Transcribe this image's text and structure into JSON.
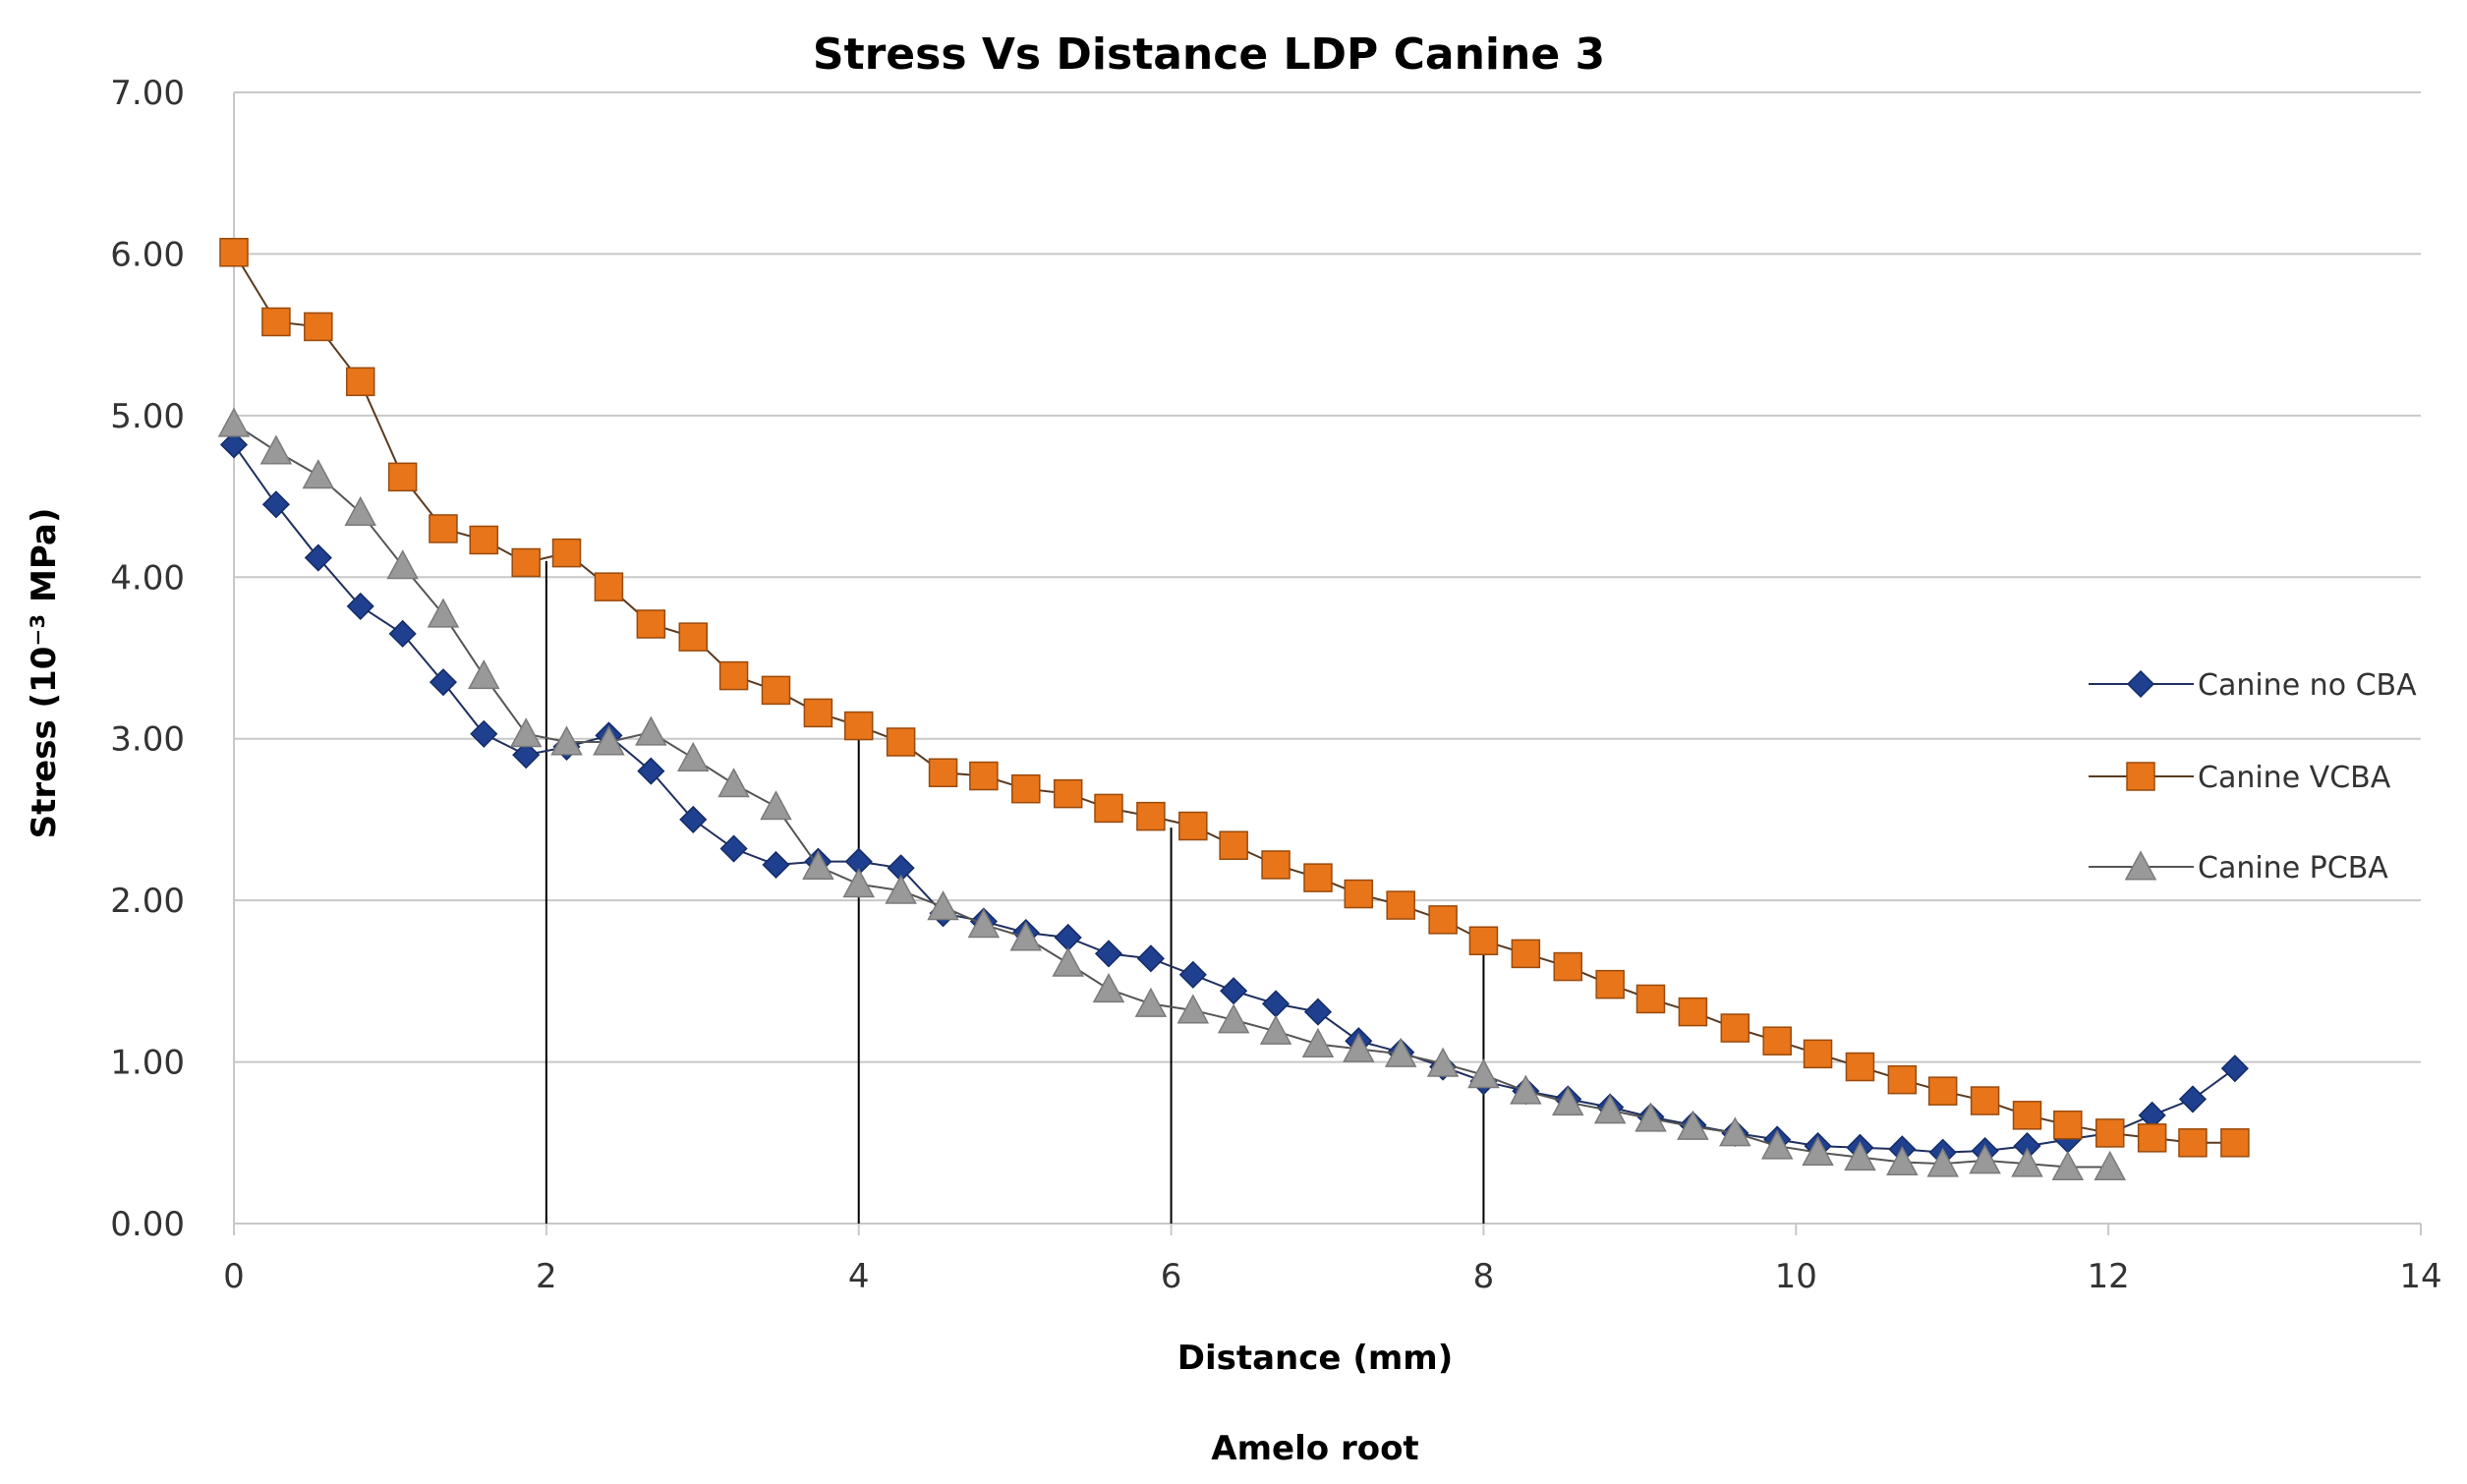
{
  "chart_data": {
    "type": "line",
    "title": "Stress Vs Distance  LDP Canine 3",
    "xlabel": "Distance (mm)",
    "ylabel": "Stress (10⁻³ MPa)",
    "subtitle_below": "Amelo root",
    "xlim": [
      0,
      14
    ],
    "ylim": [
      0,
      7
    ],
    "x_ticks": [
      "0",
      "2",
      "4",
      "6",
      "8",
      "10",
      "12",
      "14"
    ],
    "y_ticks": [
      "0.00",
      "1.00",
      "2.00",
      "3.00",
      "4.00",
      "5.00",
      "6.00",
      "7.00"
    ],
    "grid": "horizontal",
    "legend_position": "right",
    "vertical_markers": [
      {
        "x": 2,
        "y": 4.1
      },
      {
        "x": 4,
        "y": 3.05
      },
      {
        "x": 6,
        "y": 2.45
      },
      {
        "x": 8,
        "y": 1.7
      }
    ],
    "series": [
      {
        "name": "Canine no CBA",
        "color": "#1F3F8F",
        "marker": "diamond",
        "x": [
          0,
          0.27,
          0.54,
          0.81,
          1.08,
          1.34,
          1.6,
          1.87,
          2.13,
          2.4,
          2.67,
          2.94,
          3.2,
          3.47,
          3.74,
          4.0,
          4.27,
          4.54,
          4.8,
          5.07,
          5.34,
          5.6,
          5.87,
          6.14,
          6.4,
          6.67,
          6.94,
          7.2,
          7.47,
          7.74,
          8.0,
          8.27,
          8.54,
          8.81,
          9.07,
          9.34,
          9.61,
          9.88,
          10.14,
          10.41,
          10.68,
          10.94,
          11.21,
          11.48,
          11.74,
          12.01,
          12.28,
          12.54,
          12.81
        ],
        "y": [
          4.82,
          4.45,
          4.12,
          3.82,
          3.65,
          3.35,
          3.03,
          2.9,
          2.95,
          3.02,
          2.8,
          2.5,
          2.32,
          2.22,
          2.24,
          2.24,
          2.2,
          1.92,
          1.87,
          1.8,
          1.77,
          1.67,
          1.64,
          1.54,
          1.44,
          1.36,
          1.31,
          1.13,
          1.06,
          0.97,
          0.88,
          0.82,
          0.77,
          0.72,
          0.66,
          0.61,
          0.56,
          0.52,
          0.48,
          0.47,
          0.46,
          0.44,
          0.45,
          0.48,
          0.52,
          0.56,
          0.67,
          0.77,
          0.96
        ]
      },
      {
        "name": "Canine VCBA",
        "color": "#E8751A",
        "marker": "square",
        "x": [
          0,
          0.27,
          0.54,
          0.81,
          1.08,
          1.34,
          1.6,
          1.87,
          2.13,
          2.4,
          2.67,
          2.94,
          3.2,
          3.47,
          3.74,
          4.0,
          4.27,
          4.54,
          4.8,
          5.07,
          5.34,
          5.6,
          5.87,
          6.14,
          6.4,
          6.67,
          6.94,
          7.2,
          7.47,
          7.74,
          8.0,
          8.27,
          8.54,
          8.81,
          9.07,
          9.34,
          9.61,
          9.88,
          10.14,
          10.41,
          10.68,
          10.94,
          11.21,
          11.48,
          11.74,
          12.01,
          12.28,
          12.54,
          12.81
        ],
        "y": [
          6.01,
          5.58,
          5.55,
          5.21,
          4.62,
          4.3,
          4.23,
          4.09,
          4.15,
          3.94,
          3.71,
          3.63,
          3.39,
          3.3,
          3.16,
          3.08,
          2.98,
          2.79,
          2.77,
          2.69,
          2.66,
          2.57,
          2.52,
          2.46,
          2.34,
          2.22,
          2.14,
          2.04,
          1.97,
          1.88,
          1.75,
          1.67,
          1.59,
          1.48,
          1.39,
          1.31,
          1.21,
          1.13,
          1.05,
          0.97,
          0.89,
          0.82,
          0.76,
          0.67,
          0.61,
          0.56,
          0.53,
          0.5,
          0.5
        ]
      },
      {
        "name": "Canine PCBA",
        "color": "#999999",
        "marker": "triangle",
        "x": [
          0,
          0.27,
          0.54,
          0.81,
          1.08,
          1.34,
          1.6,
          1.87,
          2.13,
          2.4,
          2.67,
          2.94,
          3.2,
          3.47,
          3.74,
          4.0,
          4.27,
          4.54,
          4.8,
          5.07,
          5.34,
          5.6,
          5.87,
          6.14,
          6.4,
          6.67,
          6.94,
          7.2,
          7.47,
          7.74,
          8.0,
          8.27,
          8.54,
          8.81,
          9.07,
          9.34,
          9.61,
          9.88,
          10.14,
          10.41,
          10.68,
          10.94,
          11.21,
          11.48,
          11.74,
          12.01
        ],
        "y": [
          4.95,
          4.78,
          4.63,
          4.4,
          4.07,
          3.77,
          3.39,
          3.03,
          2.98,
          2.98,
          3.04,
          2.88,
          2.72,
          2.58,
          2.21,
          2.1,
          2.06,
          1.96,
          1.85,
          1.77,
          1.61,
          1.45,
          1.36,
          1.32,
          1.26,
          1.19,
          1.11,
          1.08,
          1.05,
          0.99,
          0.92,
          0.82,
          0.75,
          0.7,
          0.65,
          0.6,
          0.56,
          0.48,
          0.44,
          0.41,
          0.38,
          0.37,
          0.39,
          0.37,
          0.35,
          0.35
        ]
      }
    ]
  }
}
